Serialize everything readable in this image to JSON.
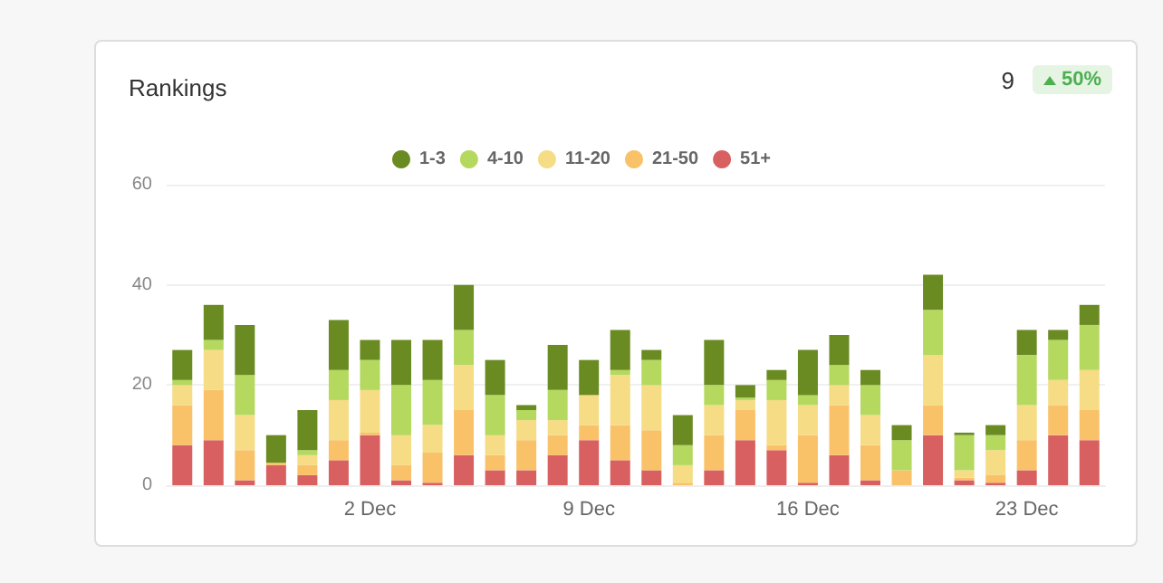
{
  "chart_data": {
    "type": "bar",
    "title": "Rankings",
    "annotations": [
      "9",
      "50%"
    ],
    "categories": [
      null,
      null,
      null,
      null,
      null,
      null,
      "2 Dec",
      null,
      null,
      null,
      null,
      null,
      null,
      "9 Dec",
      null,
      null,
      null,
      null,
      null,
      null,
      "16 Dec",
      null,
      null,
      null,
      null,
      null,
      null,
      "23 Dec",
      null,
      null
    ],
    "stacked": true,
    "ylim": [
      0,
      60
    ],
    "yticks": [
      0,
      20,
      40,
      60
    ],
    "grid": "y",
    "legend": "top",
    "series": [
      {
        "name": "51+",
        "color": "#d96060",
        "values": [
          8,
          9,
          1,
          4,
          2,
          5,
          10,
          1,
          0.5,
          6,
          3,
          3,
          6,
          9,
          5,
          3,
          0,
          3,
          9,
          7,
          0.5,
          6,
          1,
          0,
          10,
          1,
          0.5,
          3,
          10,
          9
        ]
      },
      {
        "name": "21-50",
        "color": "#f9c268",
        "values": [
          8,
          10,
          6,
          0.5,
          2,
          4,
          0.5,
          3,
          6,
          9,
          3,
          6,
          4,
          3,
          7,
          8,
          0.5,
          7,
          6,
          1,
          9.5,
          10,
          7,
          3,
          6,
          0.5,
          1.5,
          6,
          6,
          6
        ]
      },
      {
        "name": "11-20",
        "color": "#f5dc85",
        "values": [
          4,
          8,
          7,
          0,
          2,
          8,
          8.5,
          6,
          5.5,
          9,
          4,
          4,
          3,
          6,
          10,
          9,
          3.5,
          6,
          2,
          9,
          6,
          4,
          6,
          0,
          10,
          1.5,
          5,
          7,
          5,
          8
        ]
      },
      {
        "name": "4-10",
        "color": "#b5d85f",
        "values": [
          1,
          2,
          8,
          0,
          1,
          6,
          6,
          10,
          9,
          7,
          8,
          2,
          6,
          0,
          1,
          5,
          4,
          4,
          0.5,
          4,
          2,
          4,
          6,
          6,
          9,
          7,
          3,
          10,
          8,
          9
        ]
      },
      {
        "name": "1-3",
        "color": "#6a8a22",
        "values": [
          6,
          7,
          10,
          5.5,
          8,
          10,
          4,
          9,
          8,
          9,
          7,
          1,
          9,
          7,
          8,
          2,
          6,
          9,
          2.5,
          2,
          9,
          6,
          3,
          3,
          7,
          0.5,
          2,
          5,
          2,
          4
        ]
      }
    ]
  }
}
